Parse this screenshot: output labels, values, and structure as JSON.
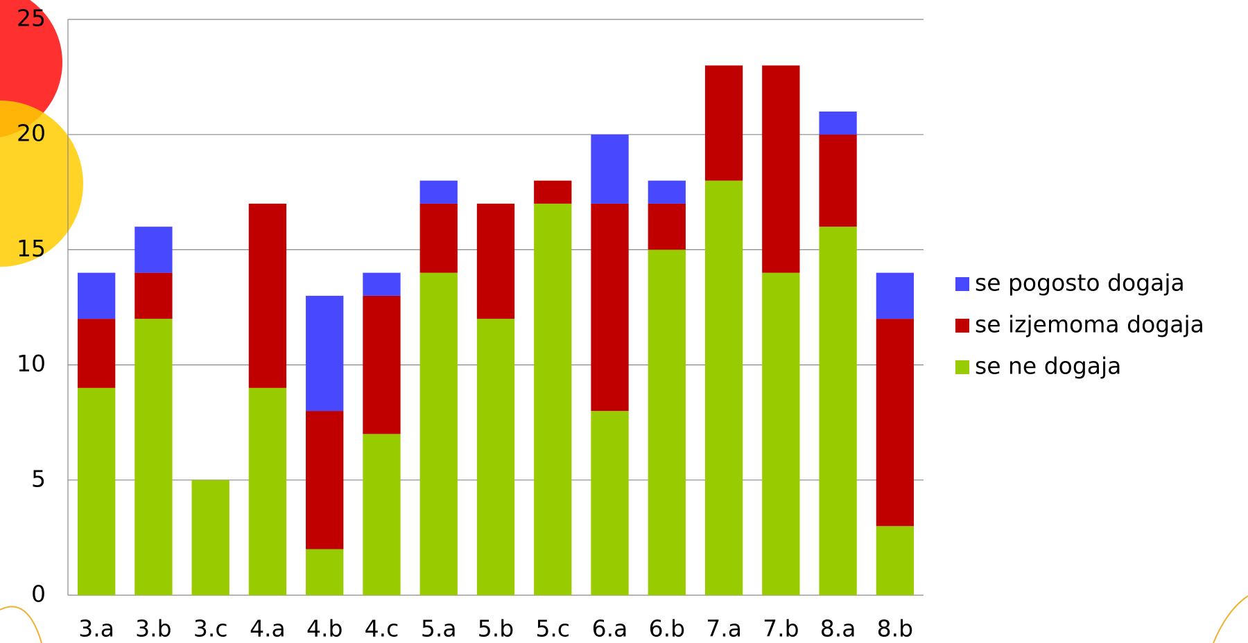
{
  "chart_data": {
    "type": "stacked_bar",
    "categories": [
      "3.a",
      "3.b",
      "3.c",
      "4.a",
      "4.b",
      "4.c",
      "5.a",
      "5.b",
      "5.c",
      "6.a",
      "6.b",
      "7.a",
      "7.b",
      "8.a",
      "8.b"
    ],
    "series": [
      {
        "name": "se ne dogaja",
        "color": "#99cc00",
        "values": [
          9,
          12,
          5,
          9,
          2,
          7,
          14,
          12,
          17,
          8,
          15,
          18,
          14,
          16,
          3
        ]
      },
      {
        "name": "se izjemoma dogaja",
        "color": "#c00000",
        "values": [
          3,
          2,
          0,
          8,
          6,
          6,
          3,
          5,
          1,
          9,
          2,
          5,
          9,
          4,
          9
        ]
      },
      {
        "name": "se pogosto dogaja",
        "color": "#4848ff",
        "values": [
          2,
          2,
          0,
          0,
          5,
          1,
          1,
          0,
          0,
          3,
          1,
          0,
          0,
          1,
          2
        ]
      }
    ],
    "ylim": [
      0,
      25
    ],
    "yticks": [
      0,
      5,
      10,
      15,
      20,
      25
    ],
    "grid": true,
    "legend": "right"
  }
}
